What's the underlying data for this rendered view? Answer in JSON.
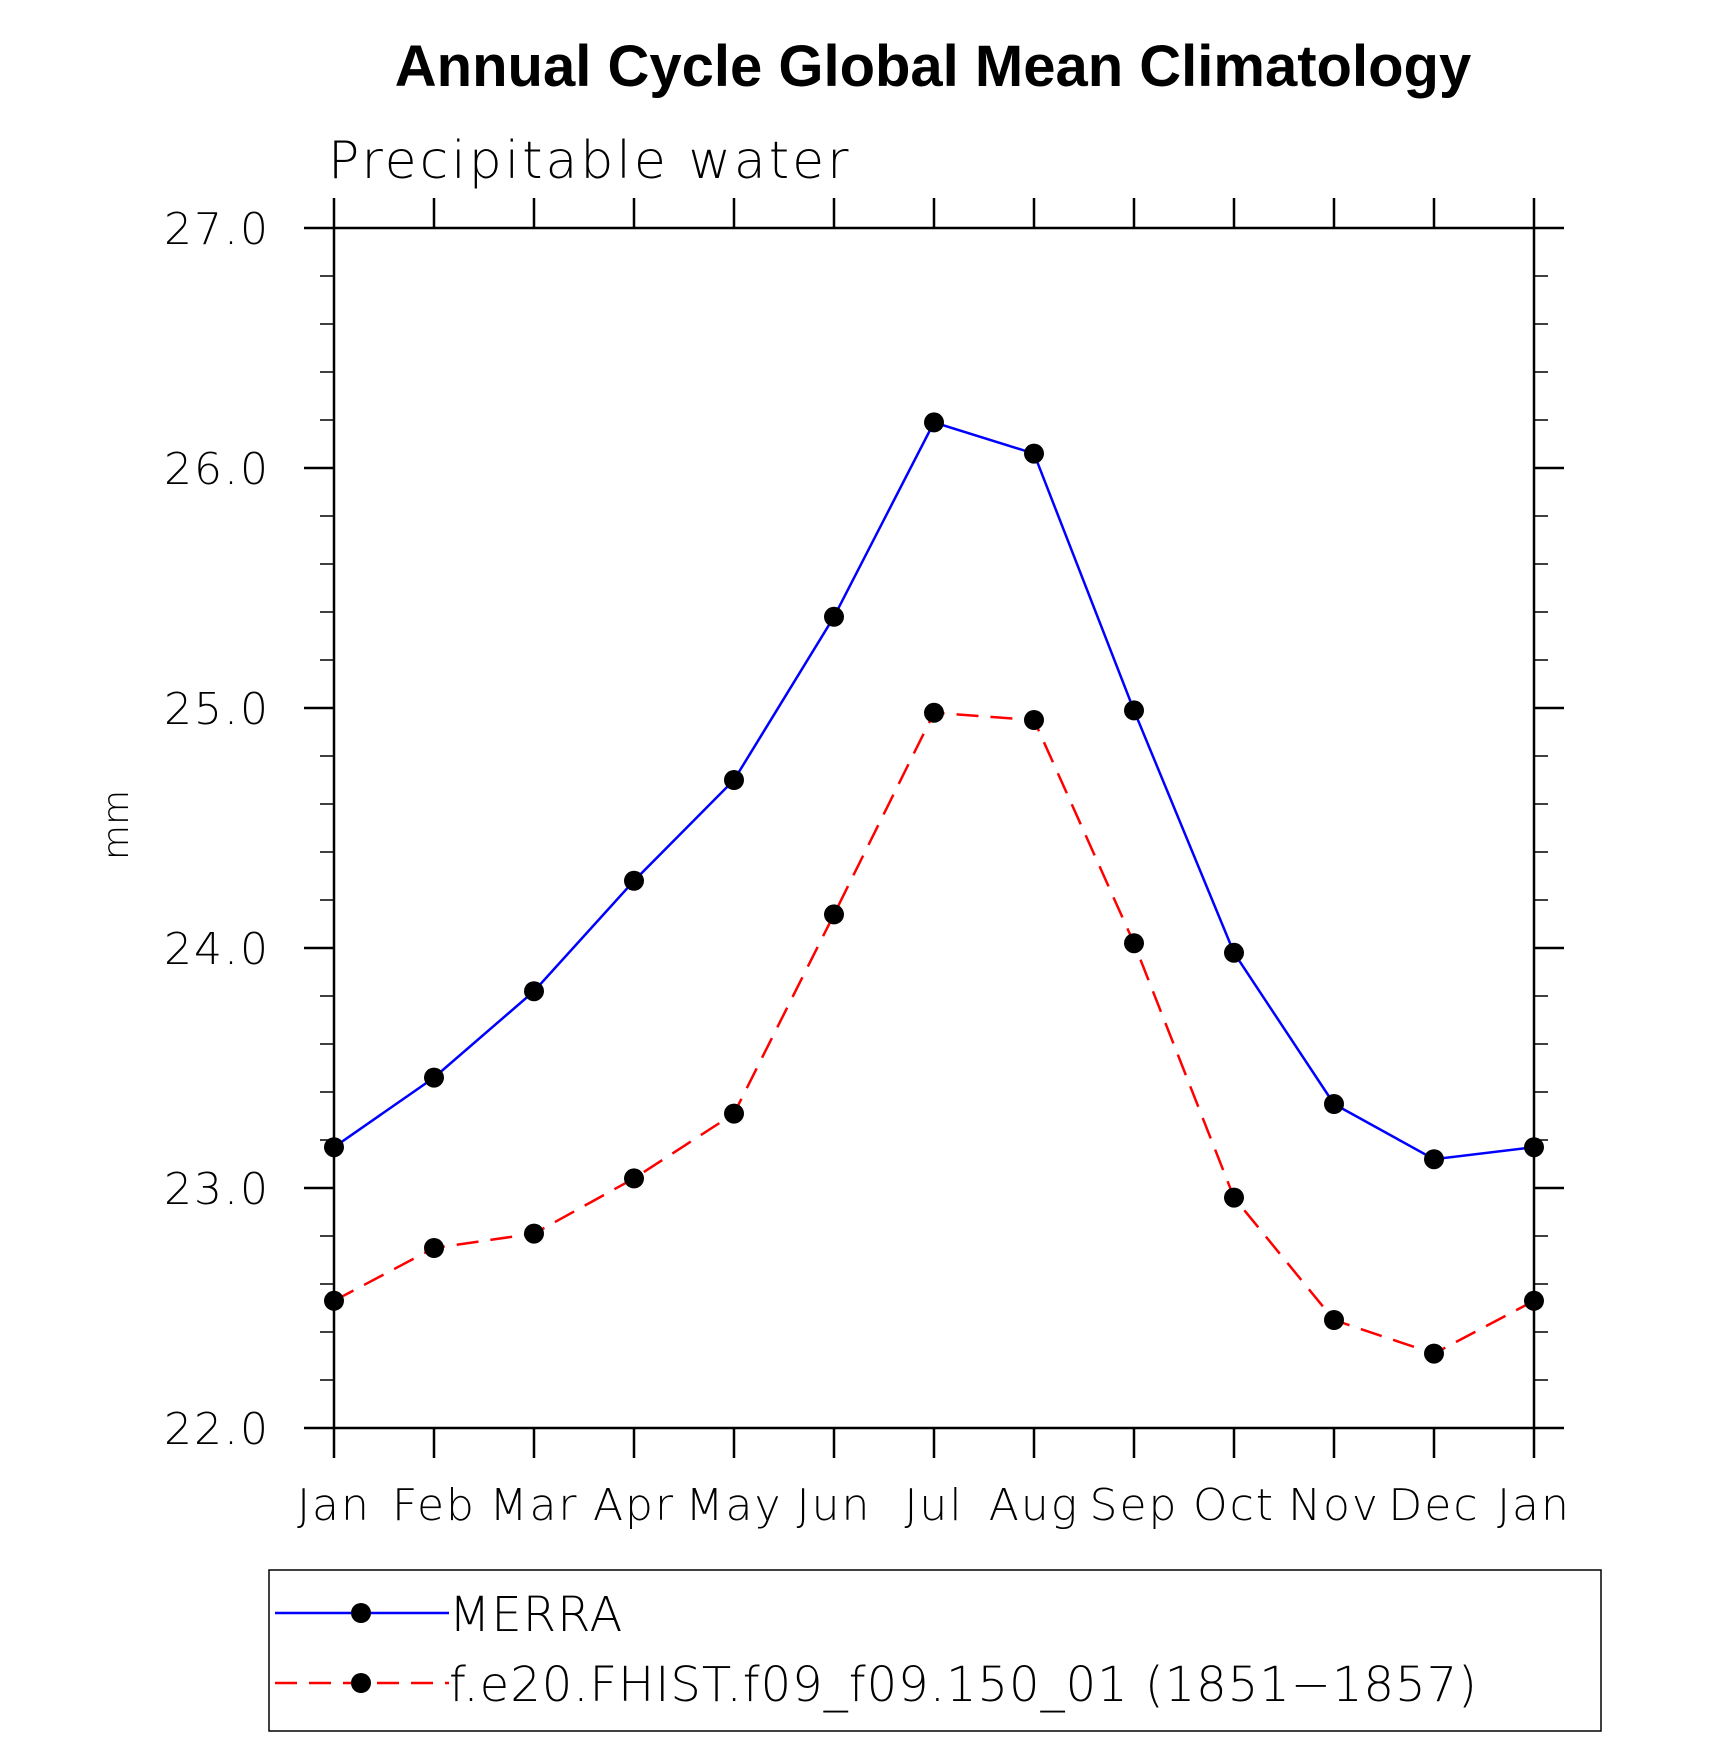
{
  "chart_data": {
    "type": "line",
    "title": "Annual Cycle Global Mean Climatology",
    "subtitle": "Precipitable water",
    "xlabel": "",
    "ylabel": "mm",
    "categories": [
      "Jan",
      "Feb",
      "Mar",
      "Apr",
      "May",
      "Jun",
      "Jul",
      "Aug",
      "Sep",
      "Oct",
      "Nov",
      "Dec",
      "Jan"
    ],
    "ylim": [
      22.0,
      27.0
    ],
    "yticks": [
      "22.0",
      "23.0",
      "24.0",
      "25.0",
      "26.0",
      "27.0"
    ],
    "grid": false,
    "legend_position": "bottom",
    "series": [
      {
        "name": "MERRA",
        "color": "#0000ff",
        "line_style": "solid",
        "marker": "filled-circle",
        "values": [
          23.17,
          23.46,
          23.82,
          24.28,
          24.7,
          25.38,
          26.19,
          26.06,
          24.99,
          23.98,
          23.35,
          23.12,
          23.17
        ]
      },
      {
        "name": "f.e20.FHIST.f09_f09.150_01 (1851−1857)",
        "color": "#ff0000",
        "line_style": "dashed",
        "marker": "filled-circle",
        "values": [
          22.53,
          22.75,
          22.81,
          23.04,
          23.31,
          24.14,
          24.98,
          24.95,
          24.02,
          22.96,
          22.45,
          22.31,
          22.53
        ]
      }
    ]
  }
}
